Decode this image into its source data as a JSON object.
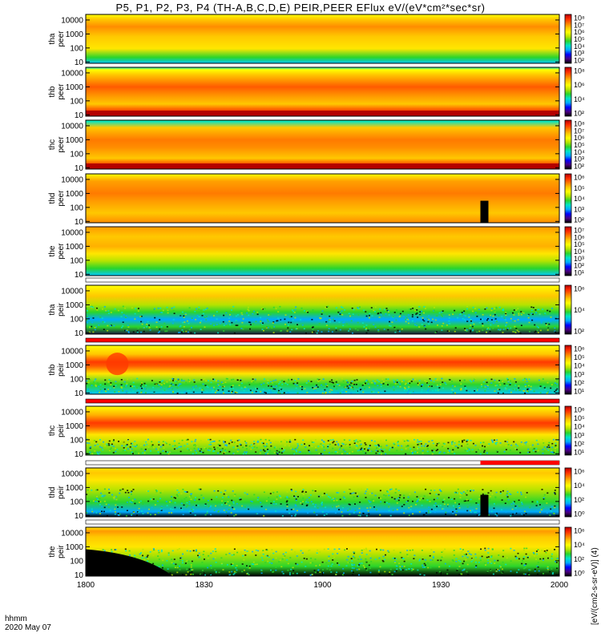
{
  "title": "P5, P1, P2, P3, P4 (TH-A,B,C,D,E) PEIR,PEER EFlux eV/(eV*cm²*sec*sr)",
  "colorbar_unit_label": "[eV/(cm2-s-sr-eV)] (4)",
  "colors": {
    "colormap": [
      "#000000",
      "#4b0082",
      "#0000ff",
      "#00aaff",
      "#00e5c8",
      "#2bd52b",
      "#b6e300",
      "#ffff00",
      "#ffc800",
      "#ff7a00",
      "#ff2a00",
      "#b40000"
    ],
    "quality_flag_red": "#ff0000",
    "quality_flag_white": "#ffffff"
  },
  "footer": {
    "time_label": "hhmm",
    "date_label": "2020 May 07"
  },
  "chart_data": {
    "type": "heatmap",
    "description_x": "time (hhmm)",
    "x_range": [
      "1800",
      "2000"
    ],
    "x_ticks": [
      "1800",
      "1830",
      "1900",
      "1930",
      "2000"
    ],
    "y_scale": "log",
    "panels": [
      {
        "probe": "tha",
        "species": "peer",
        "label_top": "tha",
        "label_bottom": "peer",
        "yticks": [
          "10000",
          "1000",
          "100",
          "10"
        ],
        "ylim": [
          8,
          25000
        ],
        "cbar_ticks": [
          "10⁸",
          "10⁷",
          "10⁶",
          "10⁵",
          "10⁴",
          "10³",
          "10²"
        ],
        "pattern": "peer-a",
        "flag": "none"
      },
      {
        "probe": "thb",
        "species": "peer",
        "label_top": "thb",
        "label_bottom": "peer",
        "yticks": [
          "10000",
          "1000",
          "100",
          "10"
        ],
        "ylim": [
          8,
          25000
        ],
        "cbar_ticks": [
          "10⁸",
          "10⁶",
          "10⁴",
          "10²"
        ],
        "pattern": "peer-b",
        "flag": "none"
      },
      {
        "probe": "thc",
        "species": "peer",
        "label_top": "thc",
        "label_bottom": "peer",
        "yticks": [
          "10000",
          "1000",
          "100",
          "10"
        ],
        "ylim": [
          8,
          25000
        ],
        "cbar_ticks": [
          "10⁸",
          "10⁷",
          "10⁶",
          "10⁵",
          "10⁴",
          "10³",
          "10²"
        ],
        "pattern": "peer-c",
        "flag": "none"
      },
      {
        "probe": "thd",
        "species": "peer",
        "label_top": "thd",
        "label_bottom": "peer",
        "yticks": [
          "10000",
          "1000",
          "100",
          "10"
        ],
        "ylim": [
          8,
          25000
        ],
        "cbar_ticks": [
          "10⁶",
          "10⁵",
          "10⁴",
          "10³",
          "10²"
        ],
        "pattern": "peer-d",
        "flag": "none"
      },
      {
        "probe": "the",
        "species": "peer",
        "label_top": "the",
        "label_bottom": "peer",
        "yticks": [
          "10000",
          "1000",
          "100",
          "10"
        ],
        "ylim": [
          8,
          25000
        ],
        "cbar_ticks": [
          "10⁷",
          "10⁶",
          "10⁵",
          "10⁴",
          "10³",
          "10²",
          "10¹"
        ],
        "pattern": "peer-e",
        "flag": "none"
      },
      {
        "probe": "tha",
        "species": "peir",
        "label_top": "tha",
        "label_bottom": "peir",
        "yticks": [
          "10000",
          "1000",
          "100",
          "10"
        ],
        "ylim": [
          8,
          25000
        ],
        "cbar_ticks": [
          "10⁶",
          "10⁴",
          "10²"
        ],
        "pattern": "peir-a",
        "flag": "white"
      },
      {
        "probe": "thb",
        "species": "peir",
        "label_top": "thb",
        "label_bottom": "peir",
        "yticks": [
          "10000",
          "1000",
          "100",
          "10"
        ],
        "ylim": [
          8,
          25000
        ],
        "cbar_ticks": [
          "10⁶",
          "10⁵",
          "10⁴",
          "10³",
          "10²",
          "10¹"
        ],
        "pattern": "peir-b",
        "flag": "red"
      },
      {
        "probe": "thc",
        "species": "peir",
        "label_top": "thc",
        "label_bottom": "peir",
        "yticks": [
          "10000",
          "1000",
          "100",
          "10"
        ],
        "ylim": [
          8,
          25000
        ],
        "cbar_ticks": [
          "10⁶",
          "10⁵",
          "10⁴",
          "10³",
          "10²",
          "10¹"
        ],
        "pattern": "peir-c",
        "flag": "red"
      },
      {
        "probe": "thd",
        "species": "peir",
        "label_top": "thd",
        "label_bottom": "peir",
        "yticks": [
          "10000",
          "1000",
          "100",
          "10"
        ],
        "ylim": [
          8,
          25000
        ],
        "cbar_ticks": [
          "10⁶",
          "10⁴",
          "10²",
          "10⁰"
        ],
        "pattern": "peir-d",
        "flag": "white-red-end"
      },
      {
        "probe": "the",
        "species": "peir",
        "label_top": "the",
        "label_bottom": "peir",
        "yticks": [
          "10000",
          "1000",
          "100",
          "10"
        ],
        "ylim": [
          8,
          25000
        ],
        "cbar_ticks": [
          "10⁶",
          "10⁴",
          "10²",
          "10⁰"
        ],
        "pattern": "peir-e",
        "flag": "white"
      }
    ]
  }
}
